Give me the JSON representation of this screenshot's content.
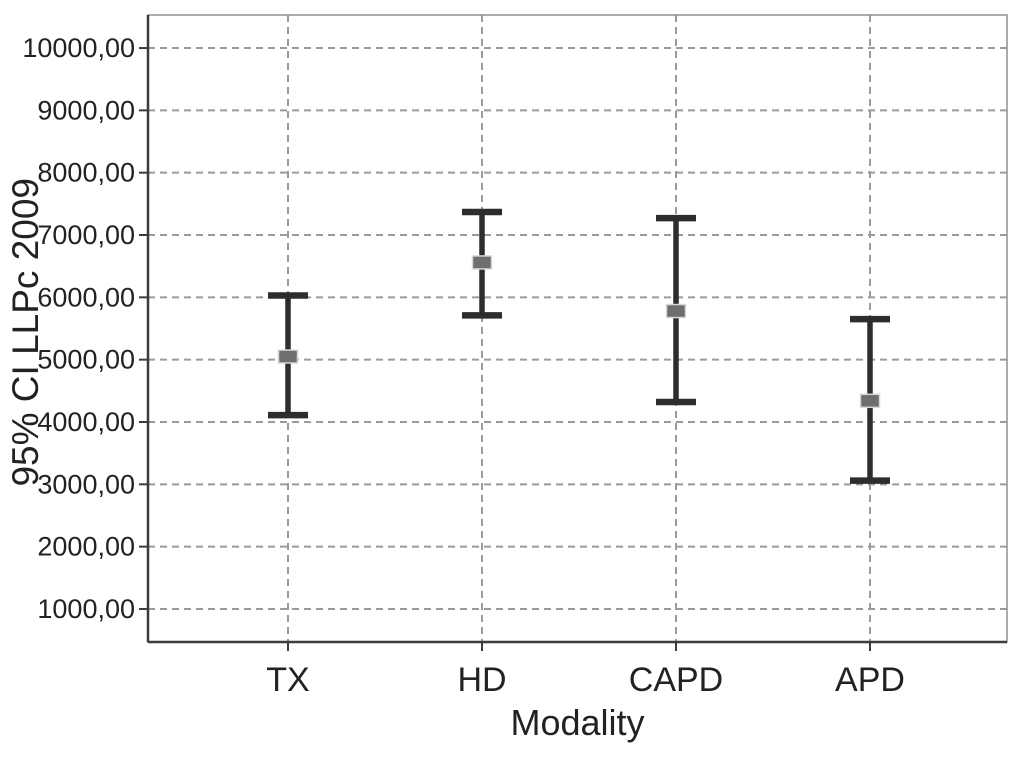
{
  "chart_data": {
    "type": "errorbar",
    "title": "",
    "xlabel": "Modality",
    "ylabel": "95% CI LLPc 2009",
    "categories": [
      "TX",
      "HD",
      "CAPD",
      "APD"
    ],
    "points": [
      {
        "category": "TX",
        "mean": 5050,
        "ci_lower": 4110,
        "ci_upper": 6030
      },
      {
        "category": "HD",
        "mean": 6560,
        "ci_lower": 5710,
        "ci_upper": 7370
      },
      {
        "category": "CAPD",
        "mean": 5780,
        "ci_lower": 4320,
        "ci_upper": 7270
      },
      {
        "category": "APD",
        "mean": 4340,
        "ci_lower": 3060,
        "ci_upper": 5650
      }
    ],
    "yticks": [
      {
        "value": 10000,
        "label": "10000,00"
      },
      {
        "value": 9000,
        "label": "9000,00"
      },
      {
        "value": 8000,
        "label": "8000,00"
      },
      {
        "value": 7000,
        "label": "7000,00"
      },
      {
        "value": 6000,
        "label": "6000,00"
      },
      {
        "value": 5000,
        "label": "5000,00"
      },
      {
        "value": 4000,
        "label": "4000,00"
      },
      {
        "value": 3000,
        "label": "3000,00"
      },
      {
        "value": 2000,
        "label": "2000,00"
      },
      {
        "value": 1000,
        "label": "1000,00"
      }
    ],
    "ylim": [
      470,
      10530
    ],
    "decimal_separator": ",",
    "grid": {
      "horizontal": "dashed",
      "vertical": "dashed"
    },
    "legend_position": "none",
    "colors": {
      "error_bar": "#2d2d2d",
      "mean_marker": "#6e6e6e",
      "mean_marker_border": "#d8d8d8",
      "gridline": "#9b9b9b",
      "axis": "#3c3c3c",
      "frame": "#8f8f8f",
      "text": "#222222",
      "background": "#ffffff"
    }
  }
}
